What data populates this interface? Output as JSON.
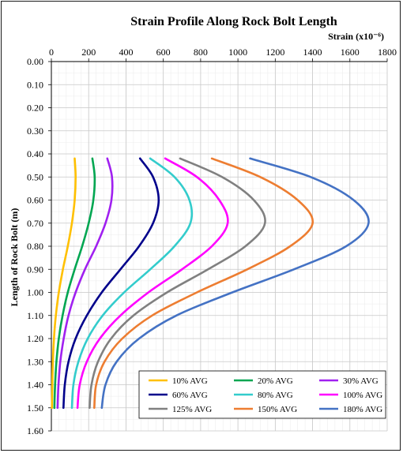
{
  "chart_data": {
    "type": "line",
    "title": "Strain Profile Along Rock Bolt Length",
    "xlabel": "Strain (x10⁻⁶)",
    "ylabel": "Length of Rock Bolt (m)",
    "x_axis_position": "top",
    "y_axis_reversed": true,
    "xlim": [
      0,
      1800
    ],
    "ylim": [
      0,
      1.6
    ],
    "xticks": [
      "0",
      "200",
      "400",
      "600",
      "800",
      "1000",
      "1200",
      "1400",
      "1600",
      "1800"
    ],
    "yticks": [
      "0.00",
      "0.10",
      "0.20",
      "0.30",
      "0.40",
      "0.50",
      "0.60",
      "0.70",
      "0.80",
      "0.90",
      "1.00",
      "1.10",
      "1.20",
      "1.30",
      "1.40",
      "1.50",
      "1.60"
    ],
    "grid": true,
    "legend_position": "bottom-right",
    "series": [
      {
        "name": "10% AVG",
        "color": "#FFC000",
        "points": [
          [
            125,
            0.42
          ],
          [
            130,
            0.5
          ],
          [
            125,
            0.6
          ],
          [
            110,
            0.7
          ],
          [
            88,
            0.8
          ],
          [
            62,
            0.9
          ],
          [
            40,
            1.0
          ],
          [
            24,
            1.1
          ],
          [
            14,
            1.2
          ],
          [
            8,
            1.3
          ],
          [
            5,
            1.4
          ],
          [
            3,
            1.5
          ]
        ]
      },
      {
        "name": "20% AVG",
        "color": "#00A651",
        "points": [
          [
            220,
            0.42
          ],
          [
            232,
            0.5
          ],
          [
            225,
            0.6
          ],
          [
            200,
            0.7
          ],
          [
            165,
            0.8
          ],
          [
            125,
            0.9
          ],
          [
            88,
            1.0
          ],
          [
            60,
            1.1
          ],
          [
            40,
            1.2
          ],
          [
            27,
            1.3
          ],
          [
            20,
            1.4
          ],
          [
            16,
            1.5
          ]
        ]
      },
      {
        "name": "30% AVG",
        "color": "#A020F0",
        "points": [
          [
            300,
            0.42
          ],
          [
            325,
            0.5
          ],
          [
            322,
            0.6
          ],
          [
            290,
            0.7
          ],
          [
            240,
            0.8
          ],
          [
            180,
            0.9
          ],
          [
            130,
            1.0
          ],
          [
            92,
            1.1
          ],
          [
            66,
            1.2
          ],
          [
            48,
            1.3
          ],
          [
            38,
            1.4
          ],
          [
            33,
            1.5
          ]
        ]
      },
      {
        "name": "60% AVG",
        "color": "#00008B",
        "points": [
          [
            475,
            0.42
          ],
          [
            545,
            0.5
          ],
          [
            575,
            0.6
          ],
          [
            545,
            0.7
          ],
          [
            470,
            0.8
          ],
          [
            370,
            0.9
          ],
          [
            270,
            1.0
          ],
          [
            190,
            1.1
          ],
          [
            130,
            1.2
          ],
          [
            92,
            1.3
          ],
          [
            72,
            1.4
          ],
          [
            65,
            1.5
          ]
        ]
      },
      {
        "name": "80% AVG",
        "color": "#33CCCC",
        "points": [
          [
            530,
            0.42
          ],
          [
            660,
            0.5
          ],
          [
            740,
            0.6
          ],
          [
            745,
            0.7
          ],
          [
            660,
            0.8
          ],
          [
            530,
            0.9
          ],
          [
            390,
            1.0
          ],
          [
            275,
            1.1
          ],
          [
            195,
            1.2
          ],
          [
            145,
            1.3
          ],
          [
            118,
            1.4
          ],
          [
            110,
            1.5
          ]
        ]
      },
      {
        "name": "100% AVG",
        "color": "#FF00FF",
        "points": [
          [
            610,
            0.42
          ],
          [
            780,
            0.5
          ],
          [
            900,
            0.6
          ],
          [
            945,
            0.7
          ],
          [
            860,
            0.8
          ],
          [
            700,
            0.9
          ],
          [
            520,
            1.0
          ],
          [
            370,
            1.1
          ],
          [
            260,
            1.2
          ],
          [
            190,
            1.3
          ],
          [
            152,
            1.4
          ],
          [
            140,
            1.5
          ]
        ]
      },
      {
        "name": "125% AVG",
        "color": "#808080",
        "points": [
          [
            690,
            0.42
          ],
          [
            915,
            0.5
          ],
          [
            1085,
            0.6
          ],
          [
            1145,
            0.7
          ],
          [
            1040,
            0.8
          ],
          [
            840,
            0.9
          ],
          [
            620,
            1.0
          ],
          [
            440,
            1.1
          ],
          [
            320,
            1.2
          ],
          [
            250,
            1.3
          ],
          [
            215,
            1.4
          ],
          [
            205,
            1.5
          ]
        ]
      },
      {
        "name": "150% AVG",
        "color": "#ED7D31",
        "points": [
          [
            860,
            0.42
          ],
          [
            1120,
            0.5
          ],
          [
            1320,
            0.6
          ],
          [
            1400,
            0.7
          ],
          [
            1280,
            0.8
          ],
          [
            1050,
            0.9
          ],
          [
            780,
            1.0
          ],
          [
            540,
            1.1
          ],
          [
            380,
            1.2
          ],
          [
            285,
            1.3
          ],
          [
            240,
            1.4
          ],
          [
            230,
            1.5
          ]
        ]
      },
      {
        "name": "180% AVG",
        "color": "#4472C4",
        "points": [
          [
            1065,
            0.42
          ],
          [
            1390,
            0.5
          ],
          [
            1620,
            0.6
          ],
          [
            1700,
            0.7
          ],
          [
            1580,
            0.8
          ],
          [
            1300,
            0.9
          ],
          [
            970,
            1.0
          ],
          [
            670,
            1.1
          ],
          [
            470,
            1.2
          ],
          [
            350,
            1.3
          ],
          [
            290,
            1.4
          ],
          [
            270,
            1.5
          ]
        ]
      }
    ]
  }
}
